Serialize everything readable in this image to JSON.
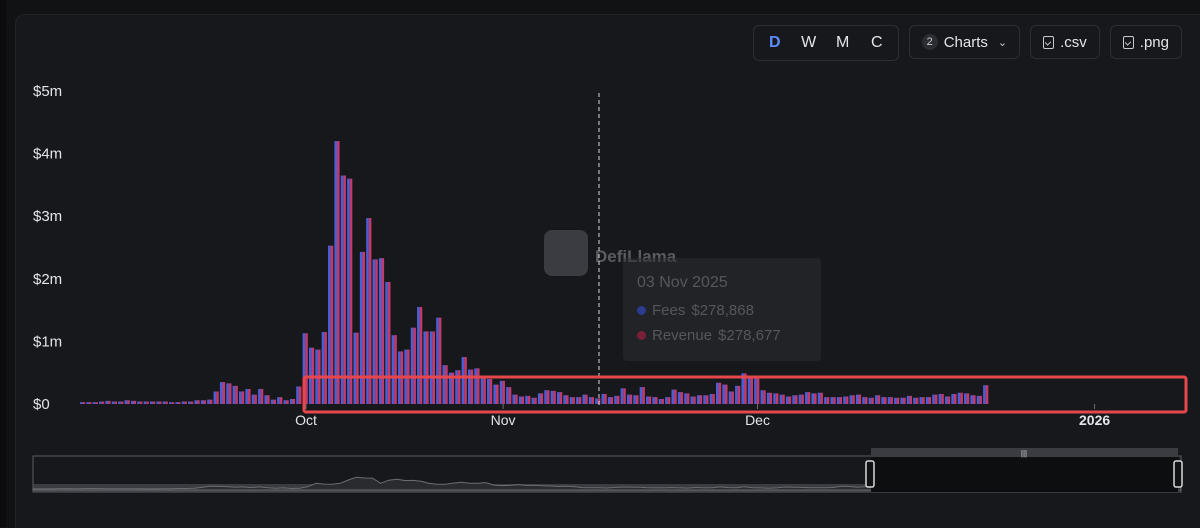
{
  "toolbar": {
    "periods": [
      {
        "label": "D",
        "active": true
      },
      {
        "label": "W",
        "active": false
      },
      {
        "label": "M",
        "active": false
      },
      {
        "label": "C",
        "active": false
      }
    ],
    "charts_count": "2",
    "charts_label": "Charts",
    "csv_label": ".csv",
    "png_label": ".png"
  },
  "watermark": "DefiLlama",
  "tooltip": {
    "date": "03 Nov 2025",
    "rows": [
      {
        "name": "Fees",
        "value": "$278,868",
        "color": "#3f52c9"
      },
      {
        "name": "Revenue",
        "value": "$278,677",
        "color": "#c9365f"
      }
    ]
  },
  "colors": {
    "fees": "#4a5fd6",
    "revenue": "#c13a6b",
    "highlight": "#e6474b"
  },
  "chart_data": {
    "type": "bar",
    "y_ticks": [
      "$0",
      "$1m",
      "$2m",
      "$3m",
      "$4m",
      "$5m"
    ],
    "ylim": [
      0,
      5000000
    ],
    "x_ticks": [
      "Oct",
      "Nov",
      "Dec",
      "2026"
    ],
    "hover_date": "03 Nov 2025",
    "series": [
      {
        "name": "Fees",
        "values": [
          30000,
          30000,
          30000,
          40000,
          50000,
          40000,
          40000,
          60000,
          50000,
          40000,
          40000,
          40000,
          40000,
          40000,
          30000,
          30000,
          40000,
          40000,
          60000,
          60000,
          70000,
          200000,
          350000,
          330000,
          290000,
          200000,
          240000,
          150000,
          240000,
          140000,
          70000,
          110000,
          60000,
          80000,
          280000,
          1130000,
          900000,
          870000,
          1150000,
          2530000,
          4200000,
          3650000,
          3600000,
          1140000,
          2430000,
          2970000,
          2310000,
          2330000,
          1950000,
          1100000,
          840000,
          870000,
          1220000,
          1550000,
          1160000,
          1160000,
          1380000,
          620000,
          500000,
          540000,
          750000,
          550000,
          570000,
          450000,
          400000,
          310000,
          370000,
          270000,
          150000,
          120000,
          130000,
          100000,
          170000,
          220000,
          210000,
          190000,
          140000,
          110000,
          110000,
          150000,
          110000,
          90000,
          160000,
          110000,
          130000,
          250000,
          150000,
          140000,
          270000,
          120000,
          110000,
          80000,
          110000,
          230000,
          190000,
          170000,
          120000,
          140000,
          140000,
          160000,
          340000,
          310000,
          200000,
          290000,
          490000,
          420000,
          420000,
          220000,
          180000,
          170000,
          150000,
          120000,
          140000,
          150000,
          190000,
          170000,
          180000,
          110000,
          110000,
          110000,
          120000,
          140000,
          150000,
          110000,
          100000,
          140000,
          110000,
          110000,
          100000,
          100000,
          130000,
          100000,
          110000,
          110000,
          150000,
          160000,
          120000,
          160000,
          180000,
          170000,
          140000,
          130000,
          300000
        ],
        "color": "#4a5fd6"
      },
      {
        "name": "Revenue",
        "values": [
          30000,
          30000,
          30000,
          40000,
          50000,
          40000,
          40000,
          60000,
          50000,
          40000,
          40000,
          40000,
          40000,
          40000,
          30000,
          30000,
          40000,
          40000,
          60000,
          60000,
          70000,
          200000,
          350000,
          330000,
          290000,
          200000,
          240000,
          150000,
          240000,
          140000,
          70000,
          110000,
          60000,
          80000,
          280000,
          1130000,
          900000,
          870000,
          1150000,
          2530000,
          4200000,
          3650000,
          3600000,
          1140000,
          2430000,
          2970000,
          2310000,
          2330000,
          1950000,
          1100000,
          840000,
          870000,
          1220000,
          1550000,
          1160000,
          1160000,
          1380000,
          620000,
          500000,
          540000,
          750000,
          550000,
          570000,
          450000,
          400000,
          310000,
          370000,
          270000,
          150000,
          120000,
          130000,
          100000,
          170000,
          220000,
          210000,
          190000,
          140000,
          110000,
          110000,
          150000,
          110000,
          90000,
          160000,
          110000,
          130000,
          250000,
          150000,
          140000,
          270000,
          120000,
          110000,
          80000,
          110000,
          230000,
          190000,
          170000,
          120000,
          140000,
          140000,
          160000,
          340000,
          310000,
          200000,
          290000,
          490000,
          420000,
          420000,
          220000,
          180000,
          170000,
          150000,
          120000,
          140000,
          150000,
          190000,
          170000,
          180000,
          110000,
          110000,
          110000,
          120000,
          140000,
          150000,
          110000,
          100000,
          140000,
          110000,
          110000,
          100000,
          100000,
          130000,
          100000,
          110000,
          110000,
          150000,
          160000,
          120000,
          160000,
          180000,
          170000,
          140000,
          130000,
          300000
        ],
        "color": "#c13a6b"
      }
    ],
    "grid": false,
    "legend": "none"
  }
}
